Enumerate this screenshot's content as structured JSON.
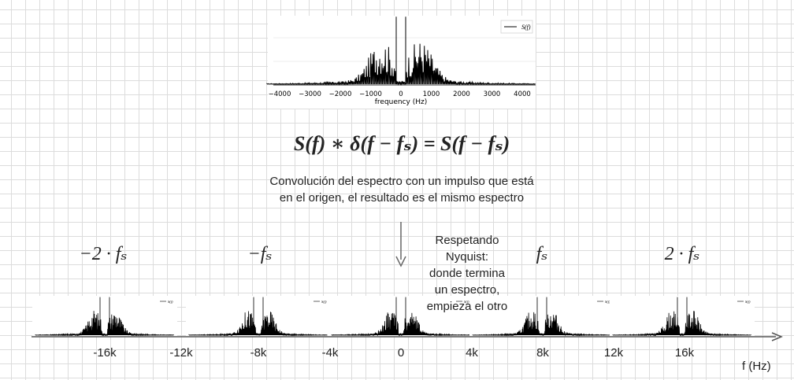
{
  "equation": "S(f) ∗ δ(f − fₛ) = S(f − fₛ)",
  "caption": {
    "line1": "Convolución del espectro con un impulso que está",
    "line2": "en el origen, el resultado es el mismo espectro"
  },
  "note": [
    "Respetando",
    "Nyquist:",
    "donde termina",
    "un espectro,",
    "empieza el otro"
  ],
  "shift_labels": [
    "−2 · fₛ",
    "−fₛ",
    "fₛ",
    "2 · fₛ"
  ],
  "top_plot": {
    "legend": "S(f)",
    "xlabel": "frequency (Hz)",
    "ticks": [
      "−4000",
      "−3000",
      "−2000",
      "−1000",
      "0",
      "1000",
      "2000",
      "3000",
      "4000"
    ]
  },
  "mini_legend": "S(f)",
  "axis": {
    "label": "f (Hz)",
    "ticks": [
      "-16k",
      "-12k",
      "-8k",
      "-4k",
      "0",
      "4k",
      "8k",
      "12k",
      "16k"
    ]
  }
}
